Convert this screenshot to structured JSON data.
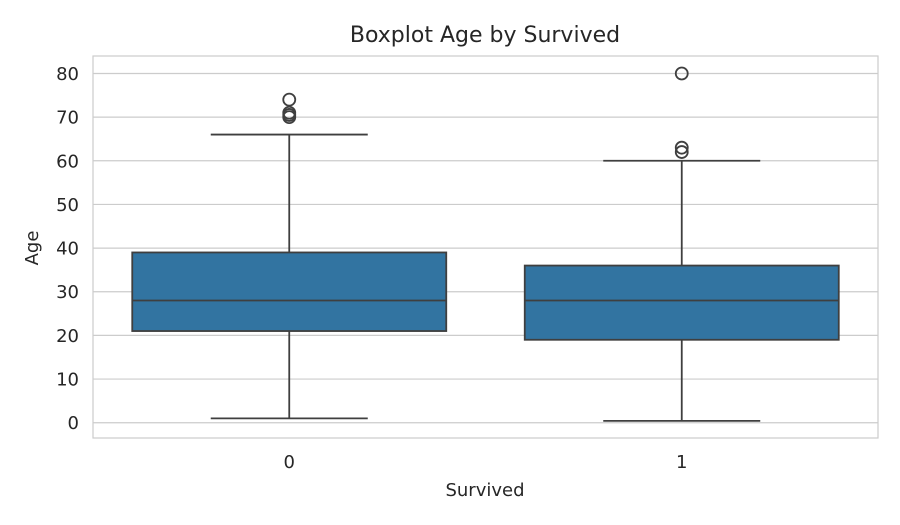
{
  "chart_data": {
    "type": "boxplot",
    "title": "Boxplot Age by Survived",
    "xlabel": "Survived",
    "ylabel": "Age",
    "categories": [
      "0",
      "1"
    ],
    "boxes": [
      {
        "category": "0",
        "whisker_low": 1,
        "q1": 21,
        "median": 28,
        "q3": 39,
        "whisker_high": 66,
        "outliers": [
          70,
          70.5,
          71,
          74
        ]
      },
      {
        "category": "1",
        "whisker_low": 0.42,
        "q1": 19,
        "median": 28,
        "q3": 36,
        "whisker_high": 60,
        "outliers": [
          62,
          63,
          80
        ]
      }
    ],
    "ylim": [
      -3.5,
      84
    ],
    "yticks": [
      0,
      10,
      20,
      30,
      40,
      50,
      60,
      70,
      80
    ],
    "grid": true,
    "colors": {
      "box": "#3274a1",
      "line": "#3f3f3f",
      "grid": "#cccccc",
      "frame": "#cccccc"
    }
  }
}
